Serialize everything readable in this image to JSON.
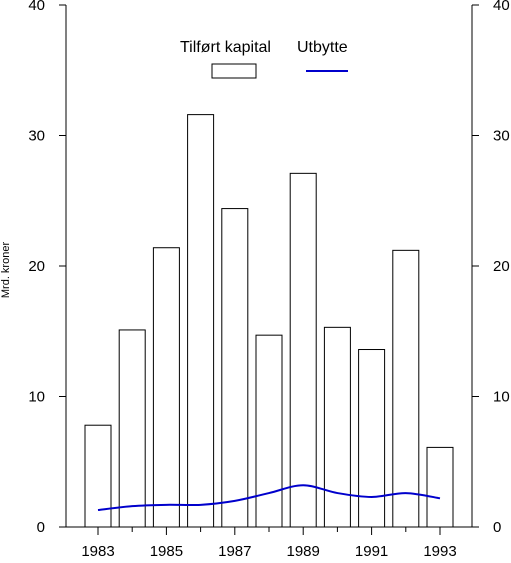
{
  "chart_data": {
    "type": "bar",
    "ylabel": "Mrd. kroner",
    "ylim": [
      0,
      40
    ],
    "yticks": [
      0,
      10,
      20,
      30,
      40
    ],
    "x_tick_labels": [
      "1983",
      "1985",
      "1987",
      "1989",
      "1991",
      "1993"
    ],
    "categories": [
      "1983",
      "1984",
      "1985",
      "1986",
      "1987",
      "1988",
      "1989",
      "1990",
      "1991",
      "1992",
      "1993"
    ],
    "series": [
      {
        "name": "Tilført kapital",
        "type": "bar",
        "values": [
          7.8,
          15.1,
          21.4,
          31.6,
          24.4,
          14.7,
          27.1,
          15.3,
          13.6,
          21.2,
          6.1
        ]
      },
      {
        "name": "Utbytte",
        "type": "line",
        "color": "#0000cc",
        "values": [
          1.3,
          1.6,
          1.7,
          1.7,
          2.0,
          2.6,
          3.2,
          2.6,
          2.3,
          2.6,
          2.2
        ]
      }
    ],
    "legend_position": "top-center",
    "grid": false
  }
}
